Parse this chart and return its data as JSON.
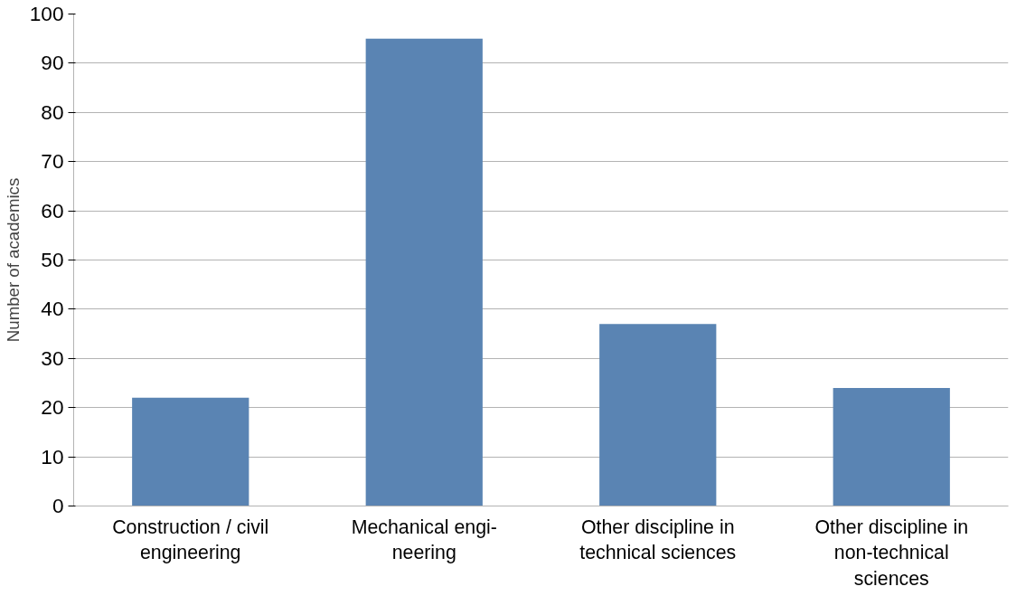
{
  "chart_data": {
    "type": "bar",
    "ylabel": "Number of academics",
    "categories": [
      "Construction / civil\nengineering",
      "Mechanical engi-\nneering",
      "Other discipline in\ntechnical sciences",
      "Other discipline in\nnon-technical\nsciences"
    ],
    "values": [
      22,
      95,
      37,
      24
    ],
    "color": "#5a84b3",
    "ylim": [
      0,
      100
    ],
    "yticks": [
      0,
      10,
      20,
      30,
      40,
      50,
      60,
      70,
      80,
      90,
      100
    ],
    "grid": "y"
  }
}
